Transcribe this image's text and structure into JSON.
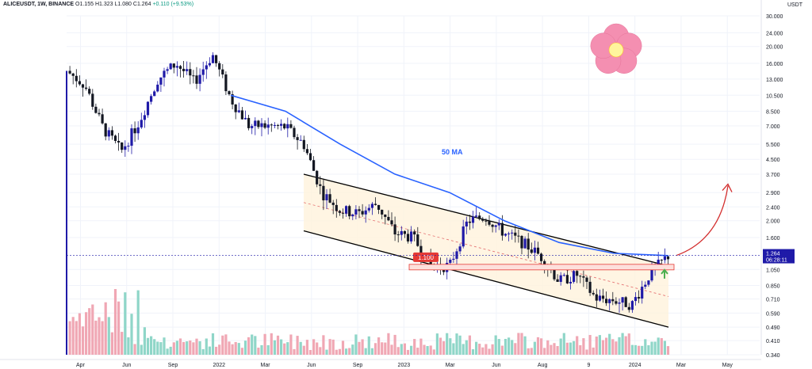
{
  "header": {
    "symbol": "ALICEUSDT, 1W, BINANCE",
    "o_label": "O",
    "o": "1.155",
    "h_label": "H",
    "h": "1.323",
    "l_label": "L",
    "l": "1.080",
    "c_label": "C",
    "c": "1.264",
    "change": "+0.110 (+9.53%)"
  },
  "price_axis": {
    "unit": "USDT",
    "ticks": [
      "30.000",
      "24.000",
      "20.000",
      "16.000",
      "13.000",
      "10.500",
      "8.500",
      "7.000",
      "5.500",
      "4.500",
      "3.700",
      "2.900",
      "2.400",
      "2.000",
      "1.600",
      "1.050",
      "0.850",
      "0.710",
      "0.590",
      "0.490",
      "0.410",
      "0.340"
    ],
    "last_price": "1.264",
    "countdown": "06:28:11"
  },
  "time_axis": [
    "Apr",
    "Jun",
    "Sep",
    "2022",
    "Mar",
    "Jun",
    "Sep",
    "2023",
    "Mar",
    "Jun",
    "Aug",
    "9",
    "2024",
    "Mar",
    "May"
  ],
  "annotations": {
    "ma_label": "50 MA",
    "level_label": "1.100"
  },
  "colors": {
    "up": "#1f1aa8",
    "down": "#131722",
    "ma": "#2962ff",
    "channel_fill": "#fff3dc",
    "level": "#e53935",
    "arrow_curve": "#d32f2f",
    "arrow_up": "#4caf50",
    "vol_up": "#8fd6c8",
    "vol_down": "#f0a7b4",
    "flower_petal": "#f48fb1",
    "flower_center": "#fff59d"
  },
  "chart_data": {
    "type": "candlestick",
    "title": "ALICEUSDT, 1W, BINANCE",
    "x_range": [
      "2021-03",
      "2024-05"
    ],
    "y_scale": "log",
    "ylim": [
      0.34,
      30
    ],
    "ohlc_latest": {
      "open": 1.155,
      "high": 1.323,
      "low": 1.08,
      "close": 1.264
    },
    "close_path": [
      {
        "date": "2021-03",
        "close": 14.5
      },
      {
        "date": "2021-04",
        "close": 12.0
      },
      {
        "date": "2021-05",
        "close": 6.8
      },
      {
        "date": "2021-06",
        "close": 5.0
      },
      {
        "date": "2021-07",
        "close": 7.5
      },
      {
        "date": "2021-08",
        "close": 13.0
      },
      {
        "date": "2021-09",
        "close": 16.0
      },
      {
        "date": "2021-10",
        "close": 12.5
      },
      {
        "date": "2021-11",
        "close": 18.0
      },
      {
        "date": "2021-12",
        "close": 10.0
      },
      {
        "date": "2022-01",
        "close": 7.0
      },
      {
        "date": "2022-02",
        "close": 7.0
      },
      {
        "date": "2022-03",
        "close": 6.9
      },
      {
        "date": "2022-04",
        "close": 5.5
      },
      {
        "date": "2022-05",
        "close": 2.9
      },
      {
        "date": "2022-06",
        "close": 2.3
      },
      {
        "date": "2022-07",
        "close": 2.2
      },
      {
        "date": "2022-08",
        "close": 2.5
      },
      {
        "date": "2022-09",
        "close": 1.7
      },
      {
        "date": "2022-10",
        "close": 1.6
      },
      {
        "date": "2022-11",
        "close": 1.1
      },
      {
        "date": "2022-12",
        "close": 1.1
      },
      {
        "date": "2023-01",
        "close": 2.0
      },
      {
        "date": "2023-02",
        "close": 2.1
      },
      {
        "date": "2023-03",
        "close": 1.7
      },
      {
        "date": "2023-04",
        "close": 1.5
      },
      {
        "date": "2023-05",
        "close": 1.25
      },
      {
        "date": "2023-06",
        "close": 0.9
      },
      {
        "date": "2023-07",
        "close": 0.98
      },
      {
        "date": "2023-08",
        "close": 0.72
      },
      {
        "date": "2023-09",
        "close": 0.7
      },
      {
        "date": "2023-10",
        "close": 0.66
      },
      {
        "date": "2023-11",
        "close": 1.0
      },
      {
        "date": "2023-12",
        "close": 1.264
      }
    ],
    "ma50": [
      {
        "date": "2021-12",
        "value": 10.5
      },
      {
        "date": "2022-03",
        "value": 8.5
      },
      {
        "date": "2022-06",
        "value": 5.5
      },
      {
        "date": "2022-09",
        "value": 3.7
      },
      {
        "date": "2022-12",
        "value": 2.9
      },
      {
        "date": "2023-03",
        "value": 2.0
      },
      {
        "date": "2023-06",
        "value": 1.5
      },
      {
        "date": "2023-09",
        "value": 1.3
      },
      {
        "date": "2023-12",
        "value": 1.26
      }
    ],
    "channel": {
      "upper": [
        {
          "date": "2022-04",
          "value": 3.7
        },
        {
          "date": "2023-12",
          "value": 1.1
        }
      ],
      "lower": [
        {
          "date": "2022-04",
          "value": 1.75
        },
        {
          "date": "2023-12",
          "value": 0.49
        }
      ]
    },
    "support_level": 1.1,
    "projection": "up",
    "volume": {
      "visible": true,
      "peak_month": "2021-06"
    }
  }
}
